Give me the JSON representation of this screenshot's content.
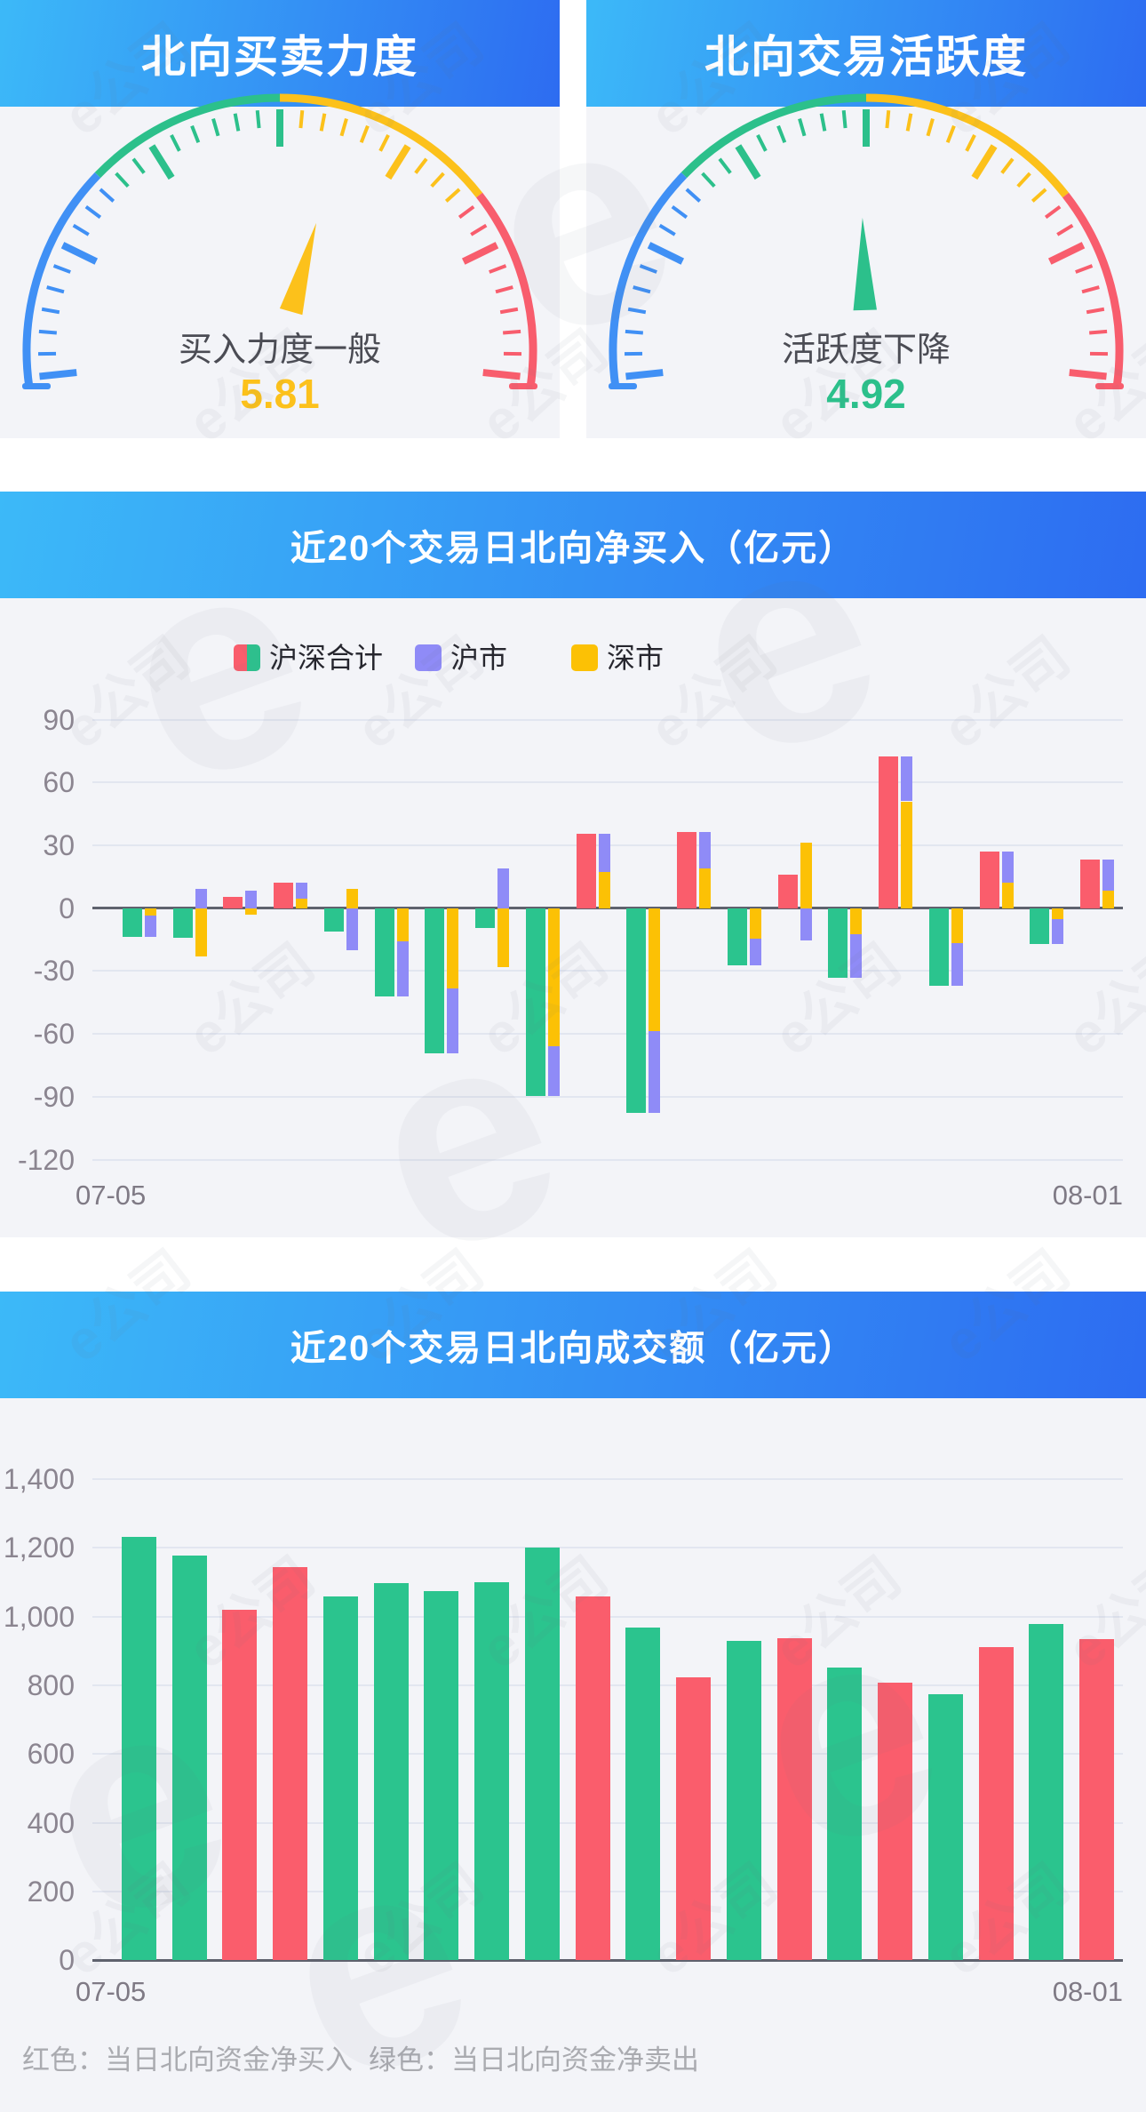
{
  "watermark_text": "e公司",
  "colors": {
    "header_gradient_start": "#3cb9f8",
    "header_gradient_end": "#2d6cf1",
    "card_bg": "#f3f4f8",
    "gauge_blue": "#4090f5",
    "gauge_green": "#2cc08b",
    "gauge_yellow": "#fcc11b",
    "gauge_red": "#f85d6d",
    "bar_red": "#fa5d6c",
    "bar_green": "#2bc48e",
    "bar_purple": "#8f8bf7",
    "bar_yellow": "#fcc105",
    "grid_light": "#e2e6f0",
    "grid_dark": "#5f626e",
    "axis_label": "#8b8590"
  },
  "chart_data": [
    {
      "type": "gauge",
      "title": "北向买卖力度",
      "status_label": "买入力度一般",
      "value": 5.81,
      "value_text": "5.81",
      "range": [
        0,
        10
      ],
      "needle_color": "#fcc11b",
      "value_color": "#fcc11b",
      "segments": [
        {
          "color": "#4090f5",
          "from": 188,
          "to": 136
        },
        {
          "color": "#2cc08b",
          "from": 136,
          "to": 90
        },
        {
          "color": "#fcc11b",
          "from": 90,
          "to": 38
        },
        {
          "color": "#f85d6d",
          "from": 38,
          "to": -8
        }
      ]
    },
    {
      "type": "gauge",
      "title": "北向交易活跃度",
      "status_label": "活跃度下降",
      "value": 4.92,
      "value_text": "4.92",
      "range": [
        0,
        10
      ],
      "needle_color": "#2cc08b",
      "value_color": "#2cc08b",
      "segments": [
        {
          "color": "#4090f5",
          "from": 188,
          "to": 136
        },
        {
          "color": "#2cc08b",
          "from": 136,
          "to": 90
        },
        {
          "color": "#fcc11b",
          "from": 90,
          "to": 38
        },
        {
          "color": "#f85d6d",
          "from": 38,
          "to": -8
        }
      ]
    },
    {
      "type": "bar",
      "subtype": "stacked-net-buy",
      "title": "近20个交易日北向净买入（亿元）",
      "x_first_label": "07-05",
      "x_last_label": "08-01",
      "ylim": [
        -120,
        90
      ],
      "y_tick_labels": [
        "90",
        "60",
        "30",
        "0",
        "-30",
        "-60",
        "-90",
        "-120"
      ],
      "y_tick_values": [
        90,
        60,
        30,
        0,
        -30,
        -60,
        -90,
        -120
      ],
      "grid": true,
      "legend": [
        {
          "label": "沪深合计",
          "swatch": [
            "#fa5d6c",
            "#2bc48e"
          ]
        },
        {
          "label": "沪市",
          "swatch": [
            "#8f8bf7"
          ]
        },
        {
          "label": "深市",
          "swatch": [
            "#fcc105"
          ]
        }
      ],
      "series": [
        {
          "name": "沪深合计",
          "role": "total",
          "color_positive": "#fa5d6c",
          "color_negative": "#2bc48e",
          "values": [
            -13.7,
            -14.0,
            5.2,
            12.2,
            -11.0,
            -42.0,
            -69.3,
            -9.3,
            -89.8,
            35.4,
            -97.8,
            36.3,
            -27.4,
            15.8,
            -33.3,
            72.6,
            -37.2,
            26.9,
            -17.2,
            23.3
          ]
        },
        {
          "name": "沪市",
          "role": "stack",
          "color": "#8f8bf7",
          "values": [
            -10.0,
            9.0,
            8.3,
            7.6,
            -20.2,
            -26.2,
            -31.1,
            19.0,
            -24.0,
            18.2,
            -39.3,
            17.3,
            -12.8,
            -15.6,
            -21.0,
            21.6,
            -20.6,
            14.9,
            -12.0,
            15.1
          ]
        },
        {
          "name": "深市",
          "role": "stack_base",
          "color": "#fcc105",
          "values": [
            -3.7,
            -23.0,
            -3.1,
            4.6,
            9.2,
            -15.8,
            -38.2,
            -28.3,
            -65.8,
            17.2,
            -58.5,
            19.0,
            -14.6,
            31.4,
            -12.3,
            51.0,
            -16.6,
            12.0,
            -5.2,
            8.2
          ]
        }
      ]
    },
    {
      "type": "bar",
      "subtype": "turnover",
      "title": "近20个交易日北向成交额（亿元）",
      "x_first_label": "07-05",
      "x_last_label": "08-01",
      "ylim": [
        0,
        1400
      ],
      "y_tick_labels": [
        "1,400",
        "1,200",
        "1,000",
        "800",
        "600",
        "400",
        "200",
        "0"
      ],
      "y_tick_values": [
        1400,
        1200,
        1000,
        800,
        600,
        400,
        200,
        0
      ],
      "grid": true,
      "values": [
        1231,
        1178,
        1021,
        1145,
        1059,
        1098,
        1073,
        1100,
        1202,
        1059,
        967,
        824,
        930,
        937,
        852,
        807,
        774,
        912,
        979,
        935
      ],
      "directions": [
        "sell",
        "sell",
        "buy",
        "buy",
        "sell",
        "sell",
        "sell",
        "sell",
        "sell",
        "buy",
        "sell",
        "buy",
        "sell",
        "buy",
        "sell",
        "buy",
        "sell",
        "buy",
        "sell",
        "buy"
      ],
      "direction_colors": {
        "buy": "#fa5d6c",
        "sell": "#2bc48e"
      }
    }
  ],
  "footer": {
    "red_note": "红色：当日北向资金净买入",
    "green_note": "绿色：当日北向资金净卖出"
  }
}
